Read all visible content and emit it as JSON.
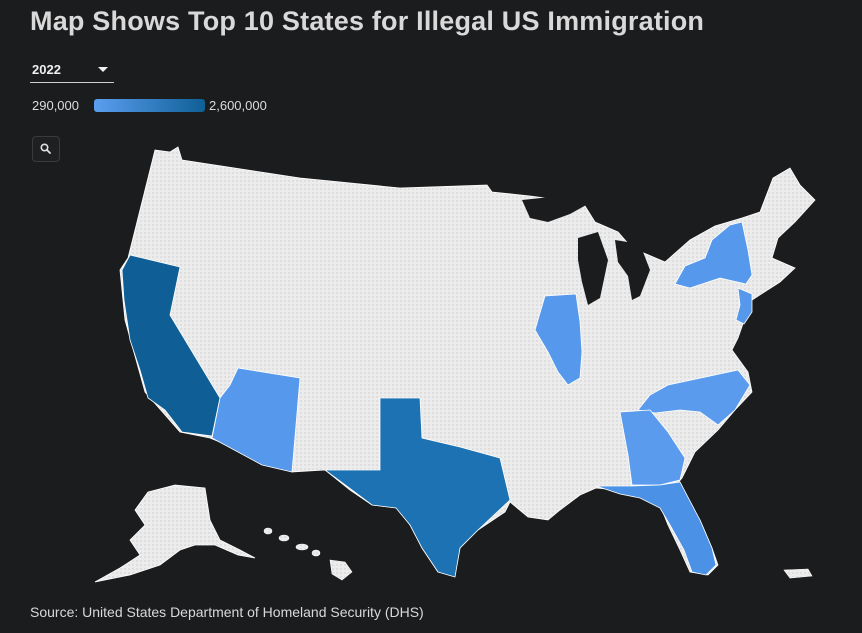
{
  "title": "Map Shows Top 10 States for Illegal US Immigration",
  "year_select": {
    "value": "2022",
    "icon": "chevron-down-icon"
  },
  "legend": {
    "min_label": "290,000",
    "max_label": "2,600,000",
    "color_low": "#5b9ef0",
    "color_high": "#0f5f96"
  },
  "zoom_button": {
    "icon": "search-icon"
  },
  "colors": {
    "background": "#1b1c1e",
    "state_default": "#e9e9e9",
    "state_border": "#ffffff"
  },
  "highlighted_states": [
    {
      "name": "California",
      "color": "#0f5f96"
    },
    {
      "name": "Texas",
      "color": "#1d72b3"
    },
    {
      "name": "Florida",
      "color": "#4b92e6"
    },
    {
      "name": "New York",
      "color": "#5598ec"
    },
    {
      "name": "Illinois",
      "color": "#5598ec"
    },
    {
      "name": "Arizona",
      "color": "#5598ec"
    },
    {
      "name": "Georgia",
      "color": "#5a9bee"
    },
    {
      "name": "North Carolina",
      "color": "#5a9bee"
    },
    {
      "name": "New Jersey",
      "color": "#5598ec"
    }
  ],
  "source": "Source: United States Department of Homeland Security (DHS)"
}
